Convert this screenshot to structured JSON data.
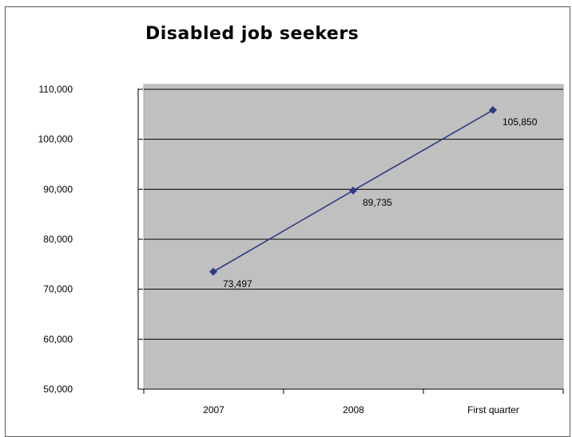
{
  "chart_data": {
    "type": "line",
    "title": "Disabled job seekers",
    "categories": [
      "2007",
      "2008",
      "First quarter"
    ],
    "series": [
      {
        "values": [
          73497,
          89735,
          105850
        ]
      }
    ],
    "data_labels": [
      "73,497",
      "89,735",
      "105,850"
    ],
    "y_ticks": [
      50000,
      60000,
      70000,
      80000,
      90000,
      100000,
      110000
    ],
    "y_tick_labels": [
      "50,000",
      "60,000",
      "70,000",
      "80,000",
      "90,000",
      "100,000",
      "110,000"
    ],
    "ylim": [
      50000,
      110000
    ],
    "grid": true,
    "legend": "none",
    "colors": {
      "plot_bg": "#c0c0c0",
      "line": "#2e3b82",
      "marker": "#2e3b82",
      "gridline": "#000000"
    }
  }
}
